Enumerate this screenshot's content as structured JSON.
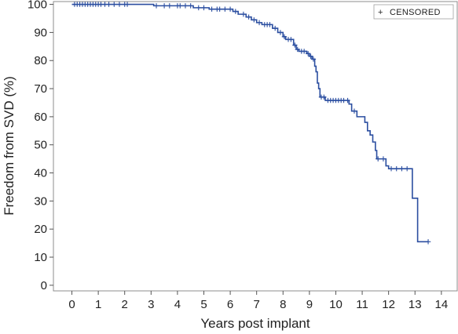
{
  "chart_data": {
    "type": "line",
    "title": "",
    "xlabel": "Years post implant",
    "ylabel": "Freedom from SVD (%)",
    "xlim": [
      -0.7,
      14.6
    ],
    "ylim": [
      -2,
      101
    ],
    "x_ticks": [
      0,
      1,
      2,
      3,
      4,
      5,
      6,
      7,
      8,
      9,
      10,
      11,
      12,
      13,
      14
    ],
    "y_ticks": [
      0,
      10,
      20,
      30,
      40,
      50,
      60,
      70,
      80,
      90,
      100
    ],
    "grid": false,
    "legend": {
      "position": "top-right",
      "entries": [
        {
          "symbol": "+",
          "label": "CENSORED"
        }
      ]
    },
    "line_color": "#2b4ea0",
    "series": [
      {
        "step_points": [
          [
            0,
            100
          ],
          [
            3.1,
            100
          ],
          [
            3.1,
            99.5
          ],
          [
            4.6,
            99.5
          ],
          [
            4.6,
            98.8
          ],
          [
            5.2,
            98.8
          ],
          [
            5.2,
            98.3
          ],
          [
            6.1,
            98.3
          ],
          [
            6.1,
            97.5
          ],
          [
            6.3,
            97.5
          ],
          [
            6.3,
            96.5
          ],
          [
            6.6,
            96.5
          ],
          [
            6.6,
            95.5
          ],
          [
            6.8,
            95.5
          ],
          [
            6.8,
            94.5
          ],
          [
            7.0,
            94.5
          ],
          [
            7.0,
            93.5
          ],
          [
            7.2,
            93.5
          ],
          [
            7.2,
            92.8
          ],
          [
            7.6,
            92.8
          ],
          [
            7.6,
            91.5
          ],
          [
            7.8,
            91.5
          ],
          [
            7.8,
            90.0
          ],
          [
            8.0,
            90.0
          ],
          [
            8.0,
            88.5
          ],
          [
            8.1,
            88.5
          ],
          [
            8.1,
            87.5
          ],
          [
            8.4,
            87.5
          ],
          [
            8.4,
            85.5
          ],
          [
            8.5,
            85.5
          ],
          [
            8.5,
            84.0
          ],
          [
            8.6,
            84.0
          ],
          [
            8.6,
            83.3
          ],
          [
            8.9,
            83.3
          ],
          [
            8.9,
            82.5
          ],
          [
            9.0,
            82.5
          ],
          [
            9.0,
            81.5
          ],
          [
            9.1,
            81.5
          ],
          [
            9.1,
            80.5
          ],
          [
            9.2,
            80.5
          ],
          [
            9.2,
            78.0
          ],
          [
            9.25,
            78.0
          ],
          [
            9.25,
            76.0
          ],
          [
            9.3,
            76.0
          ],
          [
            9.3,
            72.0
          ],
          [
            9.35,
            72.0
          ],
          [
            9.35,
            70.0
          ],
          [
            9.4,
            70.0
          ],
          [
            9.4,
            67.0
          ],
          [
            9.6,
            67.0
          ],
          [
            9.6,
            65.8
          ],
          [
            10.5,
            65.8
          ],
          [
            10.5,
            64.5
          ],
          [
            10.6,
            64.5
          ],
          [
            10.6,
            62.0
          ],
          [
            10.8,
            62.0
          ],
          [
            10.8,
            60.0
          ],
          [
            11.1,
            60.0
          ],
          [
            11.1,
            58.0
          ],
          [
            11.2,
            58.0
          ],
          [
            11.2,
            55.0
          ],
          [
            11.3,
            55.0
          ],
          [
            11.3,
            53.5
          ],
          [
            11.4,
            53.5
          ],
          [
            11.4,
            51.0
          ],
          [
            11.5,
            51.0
          ],
          [
            11.5,
            48.0
          ],
          [
            11.55,
            48.0
          ],
          [
            11.55,
            45.0
          ],
          [
            11.9,
            45.0
          ],
          [
            11.9,
            42.5
          ],
          [
            12.0,
            42.5
          ],
          [
            12.0,
            41.5
          ],
          [
            12.9,
            41.5
          ],
          [
            12.9,
            31.0
          ],
          [
            13.1,
            31.0
          ],
          [
            13.1,
            15.5
          ],
          [
            13.5,
            15.5
          ]
        ],
        "censored": [
          [
            0.1,
            100
          ],
          [
            0.2,
            100
          ],
          [
            0.3,
            100
          ],
          [
            0.4,
            100
          ],
          [
            0.5,
            100
          ],
          [
            0.6,
            100
          ],
          [
            0.7,
            100
          ],
          [
            0.8,
            100
          ],
          [
            0.9,
            100
          ],
          [
            1.0,
            100
          ],
          [
            1.1,
            100
          ],
          [
            1.25,
            100
          ],
          [
            1.4,
            100
          ],
          [
            1.6,
            100
          ],
          [
            1.8,
            100
          ],
          [
            2.0,
            100
          ],
          [
            2.1,
            100
          ],
          [
            3.2,
            99.5
          ],
          [
            3.5,
            99.5
          ],
          [
            3.7,
            99.5
          ],
          [
            4.0,
            99.5
          ],
          [
            4.1,
            99.5
          ],
          [
            4.3,
            99.5
          ],
          [
            4.5,
            99.5
          ],
          [
            4.8,
            98.8
          ],
          [
            5.0,
            98.8
          ],
          [
            5.3,
            98.3
          ],
          [
            5.5,
            98.3
          ],
          [
            5.6,
            98.3
          ],
          [
            5.8,
            98.3
          ],
          [
            6.0,
            98.3
          ],
          [
            6.2,
            97.5
          ],
          [
            6.5,
            96.5
          ],
          [
            6.7,
            95.5
          ],
          [
            6.9,
            94.5
          ],
          [
            7.1,
            93.5
          ],
          [
            7.3,
            92.8
          ],
          [
            7.4,
            92.8
          ],
          [
            7.5,
            92.8
          ],
          [
            7.7,
            91.5
          ],
          [
            7.9,
            90.0
          ],
          [
            8.05,
            88.5
          ],
          [
            8.2,
            87.5
          ],
          [
            8.3,
            87.5
          ],
          [
            8.45,
            85.5
          ],
          [
            8.55,
            84.0
          ],
          [
            8.7,
            83.3
          ],
          [
            8.8,
            83.3
          ],
          [
            8.95,
            82.5
          ],
          [
            9.05,
            81.5
          ],
          [
            9.15,
            80.5
          ],
          [
            9.45,
            67.0
          ],
          [
            9.55,
            67.0
          ],
          [
            9.7,
            65.8
          ],
          [
            9.8,
            65.8
          ],
          [
            9.9,
            65.8
          ],
          [
            10.0,
            65.8
          ],
          [
            10.1,
            65.8
          ],
          [
            10.2,
            65.8
          ],
          [
            10.3,
            65.8
          ],
          [
            10.45,
            65.8
          ],
          [
            10.7,
            62.0
          ],
          [
            11.6,
            45.0
          ],
          [
            11.8,
            45.0
          ],
          [
            12.1,
            41.5
          ],
          [
            12.3,
            41.5
          ],
          [
            12.5,
            41.5
          ],
          [
            12.7,
            41.5
          ],
          [
            13.5,
            15.5
          ]
        ]
      }
    ]
  }
}
